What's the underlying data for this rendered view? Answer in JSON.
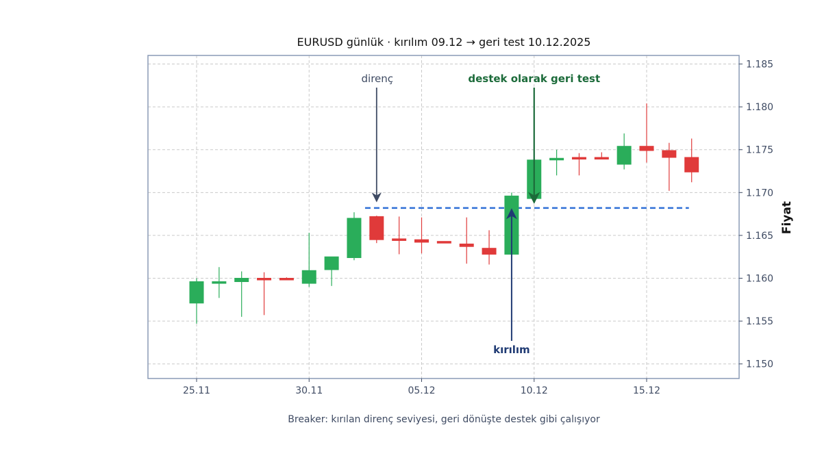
{
  "chart_data": {
    "type": "candlestick",
    "title": "EURUSD günlük · kırılım 09.12 → geri test 10.12.2025",
    "ylabel": "Fiyat",
    "xlabel": "Breaker: kırılan direnç seviyesi, geri dönüşte destek gibi çalışıyor",
    "ylim": [
      1.1483,
      1.186
    ],
    "yticks": [
      "1.150",
      "1.155",
      "1.160",
      "1.165",
      "1.170",
      "1.175",
      "1.180",
      "1.185"
    ],
    "xticks": [
      {
        "label": "25.11",
        "date": "2025-11-25"
      },
      {
        "label": "30.11",
        "date": "2025-11-30"
      },
      {
        "label": "05.12",
        "date": "2025-12-05"
      },
      {
        "label": "10.12",
        "date": "2025-12-10"
      },
      {
        "label": "15.12",
        "date": "2025-12-15"
      }
    ],
    "grid": true,
    "colors": {
      "up": "#2aad5a",
      "down": "#e03a3a",
      "level": "#2f6fd6",
      "break_arrow": "#1f3a73",
      "retest": "#1c6b3a",
      "resistance_label": "#3f4b63"
    },
    "candles": [
      {
        "date": "2025-11-25",
        "open": 1.1571,
        "high": 1.16,
        "low": 1.1547,
        "close": 1.1596
      },
      {
        "date": "2025-11-26",
        "open": 1.1594,
        "high": 1.1613,
        "low": 1.1577,
        "close": 1.1596
      },
      {
        "date": "2025-11-27",
        "open": 1.1596,
        "high": 1.1608,
        "low": 1.1555,
        "close": 1.16
      },
      {
        "date": "2025-11-28",
        "open": 1.16,
        "high": 1.1607,
        "low": 1.1557,
        "close": 1.1599
      },
      {
        "date": "2025-11-29",
        "open": 1.16,
        "high": 1.1601,
        "low": 1.1598,
        "close": 1.1599
      },
      {
        "date": "2025-11-30",
        "open": 1.1594,
        "high": 1.1653,
        "low": 1.159,
        "close": 1.1609
      },
      {
        "date": "2025-12-01",
        "open": 1.161,
        "high": 1.1625,
        "low": 1.1591,
        "close": 1.1625
      },
      {
        "date": "2025-12-02",
        "open": 1.1624,
        "high": 1.1677,
        "low": 1.1621,
        "close": 1.167
      },
      {
        "date": "2025-12-03",
        "open": 1.1672,
        "high": 1.1673,
        "low": 1.1641,
        "close": 1.1645
      },
      {
        "date": "2025-12-04",
        "open": 1.1646,
        "high": 1.1672,
        "low": 1.1628,
        "close": 1.1644
      },
      {
        "date": "2025-12-05",
        "open": 1.1645,
        "high": 1.1671,
        "low": 1.1629,
        "close": 1.1642
      },
      {
        "date": "2025-12-06",
        "open": 1.1643,
        "high": 1.1643,
        "low": 1.1641,
        "close": 1.1642
      },
      {
        "date": "2025-12-07",
        "open": 1.164,
        "high": 1.1671,
        "low": 1.1617,
        "close": 1.1637
      },
      {
        "date": "2025-12-08",
        "open": 1.1635,
        "high": 1.1656,
        "low": 1.1616,
        "close": 1.1628
      },
      {
        "date": "2025-12-09",
        "open": 1.1628,
        "high": 1.17,
        "low": 1.162,
        "close": 1.1696
      },
      {
        "date": "2025-12-10",
        "open": 1.1693,
        "high": 1.1738,
        "low": 1.1693,
        "close": 1.1738
      },
      {
        "date": "2025-12-11",
        "open": 1.1739,
        "high": 1.175,
        "low": 1.172,
        "close": 1.174
      },
      {
        "date": "2025-12-12",
        "open": 1.1741,
        "high": 1.1746,
        "low": 1.172,
        "close": 1.1739
      },
      {
        "date": "2025-12-13",
        "open": 1.1741,
        "high": 1.1747,
        "low": 1.1739,
        "close": 1.174
      },
      {
        "date": "2025-12-14",
        "open": 1.1733,
        "high": 1.1769,
        "low": 1.1727,
        "close": 1.1754
      },
      {
        "date": "2025-12-15",
        "open": 1.1754,
        "high": 1.1804,
        "low": 1.1735,
        "close": 1.1749
      },
      {
        "date": "2025-12-16",
        "open": 1.1749,
        "high": 1.1758,
        "low": 1.1702,
        "close": 1.1741
      },
      {
        "date": "2025-12-17",
        "open": 1.1741,
        "high": 1.1763,
        "low": 1.1712,
        "close": 1.1724
      }
    ],
    "level": {
      "price": 1.1682,
      "from": "2025-12-02",
      "to": "2025-12-17"
    },
    "annotations": [
      {
        "id": "resistance",
        "text": "direnç",
        "date": "2025-12-03",
        "price": 1.1685
      },
      {
        "id": "retest",
        "text": "destek olarak geri test",
        "date": "2025-12-10",
        "price": 1.1685
      },
      {
        "id": "breakout",
        "text": "kırılım",
        "date": "2025-12-09",
        "price": 1.1682
      }
    ]
  }
}
